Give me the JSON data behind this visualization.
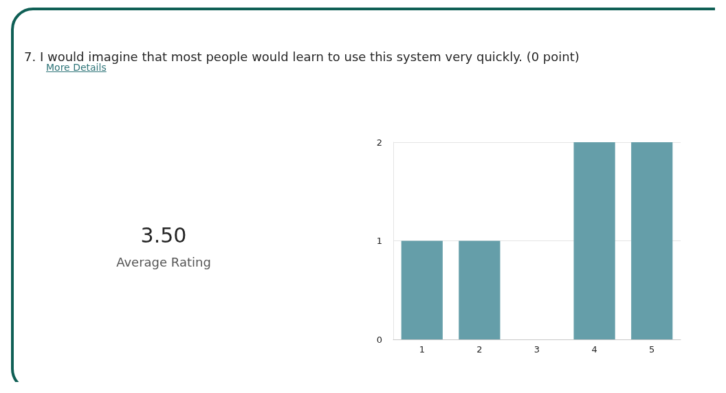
{
  "chart_data": {
    "type": "bar",
    "title": "7.  I would imagine that most people would learn to use this system very quickly. (0 point)",
    "annotations": [
      "More Details",
      "3.50",
      "Average Rating"
    ],
    "categories": [
      "1",
      "2",
      "3",
      "4",
      "5"
    ],
    "values": [
      1,
      1,
      0,
      2,
      2
    ],
    "color": "#659ea9",
    "ylim": [
      0,
      2
    ],
    "yticks": [
      0,
      1,
      2
    ],
    "grid": "y"
  }
}
